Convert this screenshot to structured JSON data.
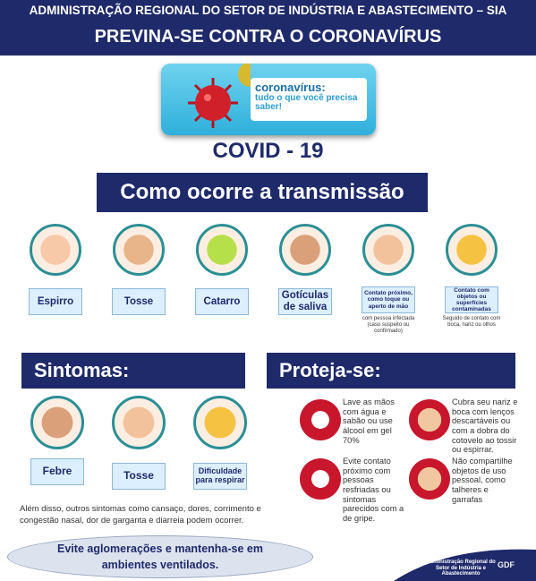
{
  "header": {
    "organization": "ADMINISTRAÇÃO REGIONAL DO SETOR DE INDÚSTRIA E ABASTECIMENTO – SIA",
    "title": "PREVINA-SE CONTRA O CORONAVÍRUS"
  },
  "banner": {
    "title": "coronavírus:",
    "subtitle": "tudo o que você precisa saber!"
  },
  "covid_label": "COVID - 19",
  "transmission": {
    "title": "Como ocorre a transmissão",
    "items": [
      {
        "label": "Espirro"
      },
      {
        "label": "Tosse"
      },
      {
        "label": "Catarro"
      },
      {
        "label": "Gotículas de saliva"
      },
      {
        "label": "Contato próximo, como toque ou aperto de mão",
        "note": "com pessoa infectada (caso suspeito ou confirmado)"
      },
      {
        "label": "Contato com objetos ou superfícies contaminadas",
        "note": "Seguido de contato com boca, nariz ou olhos"
      }
    ]
  },
  "symptoms": {
    "title": "Sintomas:",
    "items": [
      "Febre",
      "Tosse",
      "Dificuldade para respirar"
    ],
    "note": "Além disso, outros sintomas como cansaço, dores, corrimento e congestão nasal, dor de garganta e diarreia podem ocorrer."
  },
  "advice": "Evite aglomerações e mantenha-se em ambientes ventilados.",
  "protection": {
    "title": "Proteja-se:",
    "tips": [
      "Lave as mãos com água e sabão ou use álcool em gel 70%",
      "Cubra seu nariz e boca com lenços descartáveis ou com a dobra do cotovelo ao tossir ou espirrar.",
      "Evite contato próximo com pessoas resfriadas ou sintomas parecidos com a de gripe.",
      "Não compartilhe objetos de uso pessoal, como talheres e garrafas"
    ]
  },
  "footer": {
    "organization": "Administração Regional do Setor de Indústria e Abastecimento",
    "logo": "GDF"
  }
}
